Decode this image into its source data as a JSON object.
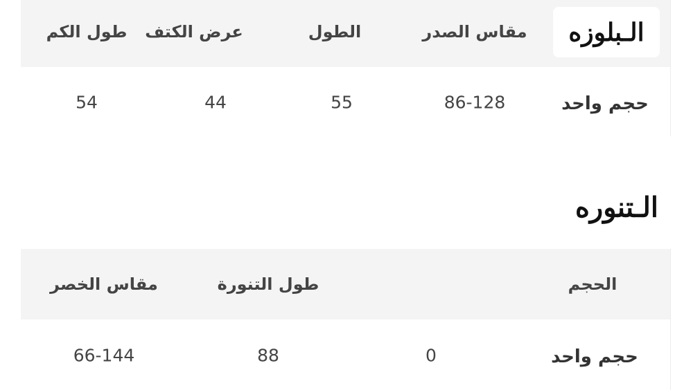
{
  "blouse": {
    "title": "الـبلوزه",
    "headers": [
      "مقاس الصدر",
      "الطول",
      "عرض الكتف",
      "طول الكم"
    ],
    "row": {
      "label": "حجم واحد",
      "values": [
        "86-128",
        "55",
        "44",
        "54"
      ]
    }
  },
  "skirt": {
    "title": "الـتنوره",
    "headers": [
      "الحجم",
      "",
      "طول التنورة",
      "مقاس الخصر"
    ],
    "row": {
      "label": "حجم واحد",
      "values": [
        "0",
        "88",
        "66-144"
      ]
    }
  }
}
